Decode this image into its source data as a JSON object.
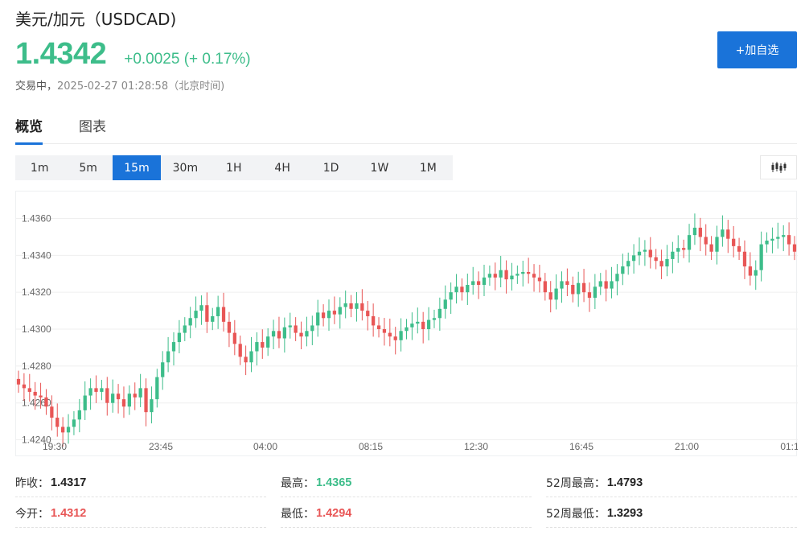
{
  "header": {
    "title": "美元/加元（USDCAD)",
    "price": "1.4342",
    "change": "+0.0025 (+ 0.17%)",
    "status": "交易中，",
    "timestamp": "2025-02-27 01:28:58（北京时间)",
    "add_label": "+加自选"
  },
  "tabs": [
    {
      "label": "概览",
      "active": true
    },
    {
      "label": "图表",
      "active": false
    }
  ],
  "ranges": [
    {
      "label": "1m",
      "active": false
    },
    {
      "label": "5m",
      "active": false
    },
    {
      "label": "15m",
      "active": true
    },
    {
      "label": "30m",
      "active": false
    },
    {
      "label": "1H",
      "active": false
    },
    {
      "label": "4H",
      "active": false
    },
    {
      "label": "1D",
      "active": false
    },
    {
      "label": "1W",
      "active": false
    },
    {
      "label": "1M",
      "active": false
    }
  ],
  "chart_type_icon": "candlestick-icon",
  "colors": {
    "up": "#3dbd8a",
    "down": "#e85656",
    "accent": "#1a73d9"
  },
  "chart_data": {
    "type": "candlestick",
    "ylim": [
      1.4235,
      1.4372
    ],
    "y_ticks": [
      "1.4360",
      "1.4340",
      "1.4320",
      "1.4300",
      "1.4280",
      "1.4260",
      "1.4240"
    ],
    "x_ticks": [
      "19:30",
      "23:45",
      "04:00",
      "08:15",
      "12:30",
      "16:45",
      "21:00",
      "01:1"
    ],
    "grid": true,
    "series": [
      {
        "values_close": [
          1.427,
          1.4268,
          1.4266,
          1.4264,
          1.4263,
          1.4258,
          1.4252,
          1.4247,
          1.4244,
          1.4247,
          1.4251,
          1.4256,
          1.4264,
          1.4268,
          1.4266,
          1.4268,
          1.426,
          1.4265,
          1.4262,
          1.4258,
          1.4265,
          1.4263,
          1.4268,
          1.4255,
          1.4262,
          1.4274,
          1.4282,
          1.4288,
          1.4293,
          1.4298,
          1.4302,
          1.4306,
          1.431,
          1.4313,
          1.4304,
          1.4307,
          1.4312,
          1.4304,
          1.4298,
          1.4292,
          1.4285,
          1.4282,
          1.4288,
          1.4293,
          1.429,
          1.4296,
          1.4299,
          1.4295,
          1.4301,
          1.4302,
          1.4298,
          1.4296,
          1.4299,
          1.4302,
          1.4309,
          1.4306,
          1.431,
          1.4308,
          1.4312,
          1.4314,
          1.4311,
          1.4314,
          1.431,
          1.4307,
          1.4302,
          1.43,
          1.4298,
          1.4296,
          1.4294,
          1.4299,
          1.4301,
          1.4303,
          1.4304,
          1.43,
          1.4305,
          1.4306,
          1.4311,
          1.4316,
          1.432,
          1.4323,
          1.432,
          1.4324,
          1.4326,
          1.4324,
          1.4328,
          1.433,
          1.4328,
          1.4332,
          1.4327,
          1.4329,
          1.433,
          1.4331,
          1.433,
          1.4328,
          1.4326,
          1.432,
          1.4316,
          1.4322,
          1.4326,
          1.4324,
          1.4319,
          1.4325,
          1.432,
          1.4317,
          1.4323,
          1.4326,
          1.4322,
          1.4326,
          1.433,
          1.4334,
          1.4337,
          1.434,
          1.4342,
          1.4343,
          1.4339,
          1.4337,
          1.4334,
          1.4338,
          1.4342,
          1.4344,
          1.4343,
          1.4351,
          1.4355,
          1.435,
          1.4346,
          1.4342,
          1.435,
          1.4354,
          1.4349,
          1.4345,
          1.4342,
          1.4334,
          1.4329,
          1.4332,
          1.4346,
          1.4348,
          1.4349,
          1.435,
          1.4351,
          1.4346,
          1.4342
        ]
      }
    ]
  },
  "stats": [
    {
      "label": "昨收：",
      "value": "1.4317",
      "tone": "neutral"
    },
    {
      "label": "最高：",
      "value": "1.4365",
      "tone": "up"
    },
    {
      "label": "52周最高：",
      "value": "1.4793",
      "tone": "neutral"
    },
    {
      "label": "今开：",
      "value": "1.4312",
      "tone": "down"
    },
    {
      "label": "最低：",
      "value": "1.4294",
      "tone": "down"
    },
    {
      "label": "52周最低：",
      "value": "1.3293",
      "tone": "neutral"
    }
  ]
}
